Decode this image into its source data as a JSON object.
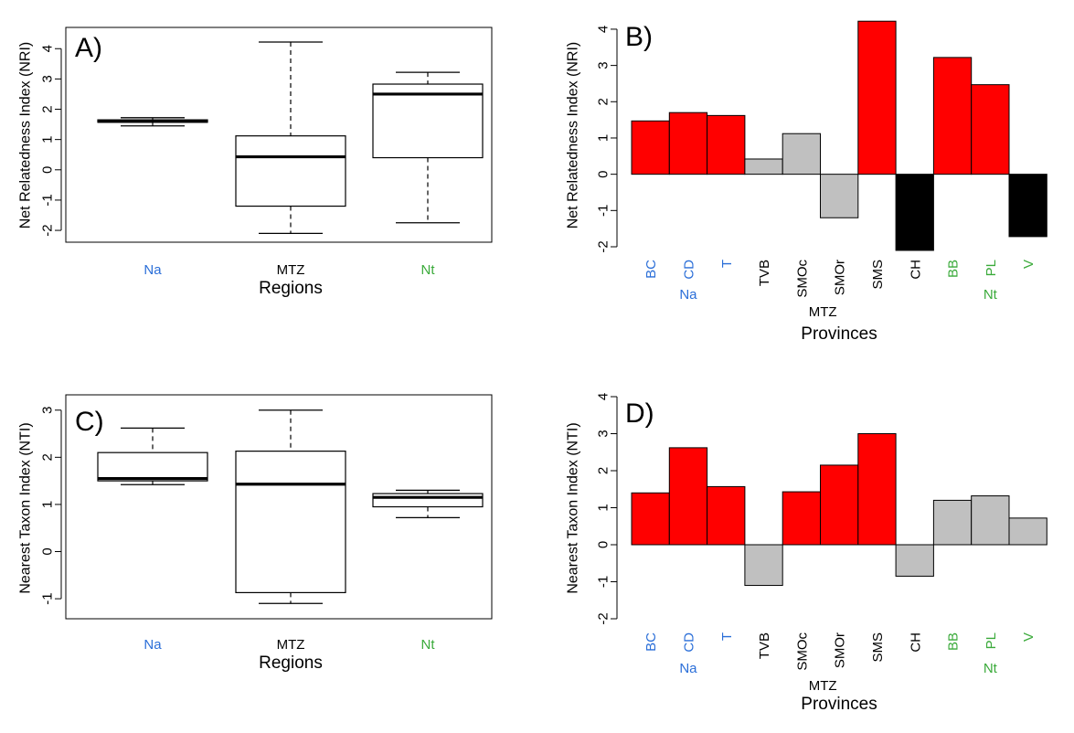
{
  "colors": {
    "Na": "#2a6ed8",
    "MTZ": "#000000",
    "Nt": "#3aaa3a",
    "positive": "#ff0000",
    "neutral": "#c0c0c0",
    "negative": "#000000"
  },
  "chart_data": [
    {
      "id": "A",
      "type": "boxplot",
      "panel_label": "A)",
      "ylabel": "Net Relatedness Index (NRI)",
      "xlabel": "Regions",
      "ylim": [
        -2.3,
        4.4
      ],
      "yticks": [
        -2,
        -1,
        0,
        1,
        2,
        3,
        4
      ],
      "boxes": [
        {
          "name": "Na",
          "group": "Na",
          "min": 1.45,
          "q1": 1.57,
          "median": 1.6,
          "q3": 1.65,
          "max": 1.72
        },
        {
          "name": "MTZ",
          "group": "MTZ",
          "min": -2.1,
          "q1": -1.2,
          "median": 0.43,
          "q3": 1.12,
          "max": 4.22
        },
        {
          "name": "Nt",
          "group": "Nt",
          "min": -1.75,
          "q1": 0.4,
          "median": 2.5,
          "q3": 2.83,
          "max": 3.22
        }
      ]
    },
    {
      "id": "B",
      "type": "bar",
      "panel_label": "B)",
      "ylabel": "Net Relatedness Index (NRI)",
      "xlabel": "Provinces",
      "ylim": [
        -2,
        4.2
      ],
      "yticks": [
        -2,
        -1,
        0,
        1,
        2,
        3,
        4
      ],
      "categories": [
        "BC",
        "CD",
        "T",
        "TVB",
        "SMOc",
        "SMOr",
        "SMS",
        "CH",
        "BB",
        "PL",
        "V"
      ],
      "category_groups": [
        "Na",
        "Na",
        "Na",
        "MTZ",
        "MTZ",
        "MTZ",
        "MTZ",
        "MTZ",
        "Nt",
        "Nt",
        "Nt"
      ],
      "values": [
        1.47,
        1.7,
        1.62,
        0.42,
        1.12,
        -1.2,
        4.22,
        -2.1,
        3.22,
        2.47,
        -1.72
      ],
      "bar_classes": [
        "positive",
        "positive",
        "positive",
        "neutral",
        "neutral",
        "neutral",
        "positive",
        "negative",
        "positive",
        "positive",
        "negative"
      ],
      "group_labels": [
        {
          "text": "Na",
          "group": "Na"
        },
        {
          "text": "MTZ",
          "group": "MTZ"
        },
        {
          "text": "Nt",
          "group": "Nt"
        }
      ]
    },
    {
      "id": "C",
      "type": "boxplot",
      "panel_label": "C)",
      "ylabel": "Nearest Taxon Index (NTI)",
      "xlabel": "Regions",
      "ylim": [
        -1.25,
        3.15
      ],
      "yticks": [
        -1,
        0,
        1,
        2,
        3
      ],
      "boxes": [
        {
          "name": "Na",
          "group": "Na",
          "min": 1.42,
          "q1": 1.5,
          "median": 1.55,
          "q3": 2.1,
          "max": 2.62
        },
        {
          "name": "MTZ",
          "group": "MTZ",
          "min": -1.1,
          "q1": -0.87,
          "median": 1.43,
          "q3": 2.13,
          "max": 3.0
        },
        {
          "name": "Nt",
          "group": "Nt",
          "min": 0.72,
          "q1": 0.95,
          "median": 1.15,
          "q3": 1.23,
          "max": 1.3
        }
      ]
    },
    {
      "id": "D",
      "type": "bar",
      "panel_label": "D)",
      "ylabel": "Nearest Taxon Index (NTI)",
      "xlabel": "Provinces",
      "ylim": [
        -2,
        4
      ],
      "yticks": [
        -2,
        -1,
        0,
        1,
        2,
        3,
        4
      ],
      "categories": [
        "BC",
        "CD",
        "T",
        "TVB",
        "SMOc",
        "SMOr",
        "SMS",
        "CH",
        "BB",
        "PL",
        "V"
      ],
      "category_groups": [
        "Na",
        "Na",
        "Na",
        "MTZ",
        "MTZ",
        "MTZ",
        "MTZ",
        "MTZ",
        "Nt",
        "Nt",
        "Nt"
      ],
      "values": [
        1.4,
        2.62,
        1.57,
        -1.1,
        1.43,
        2.15,
        3.0,
        -0.85,
        1.2,
        1.32,
        0.72
      ],
      "bar_classes": [
        "positive",
        "positive",
        "positive",
        "neutral",
        "positive",
        "positive",
        "positive",
        "neutral",
        "neutral",
        "neutral",
        "neutral"
      ],
      "group_labels": [
        {
          "text": "Na",
          "group": "Na"
        },
        {
          "text": "MTZ",
          "group": "MTZ"
        },
        {
          "text": "Nt",
          "group": "Nt"
        }
      ]
    }
  ]
}
